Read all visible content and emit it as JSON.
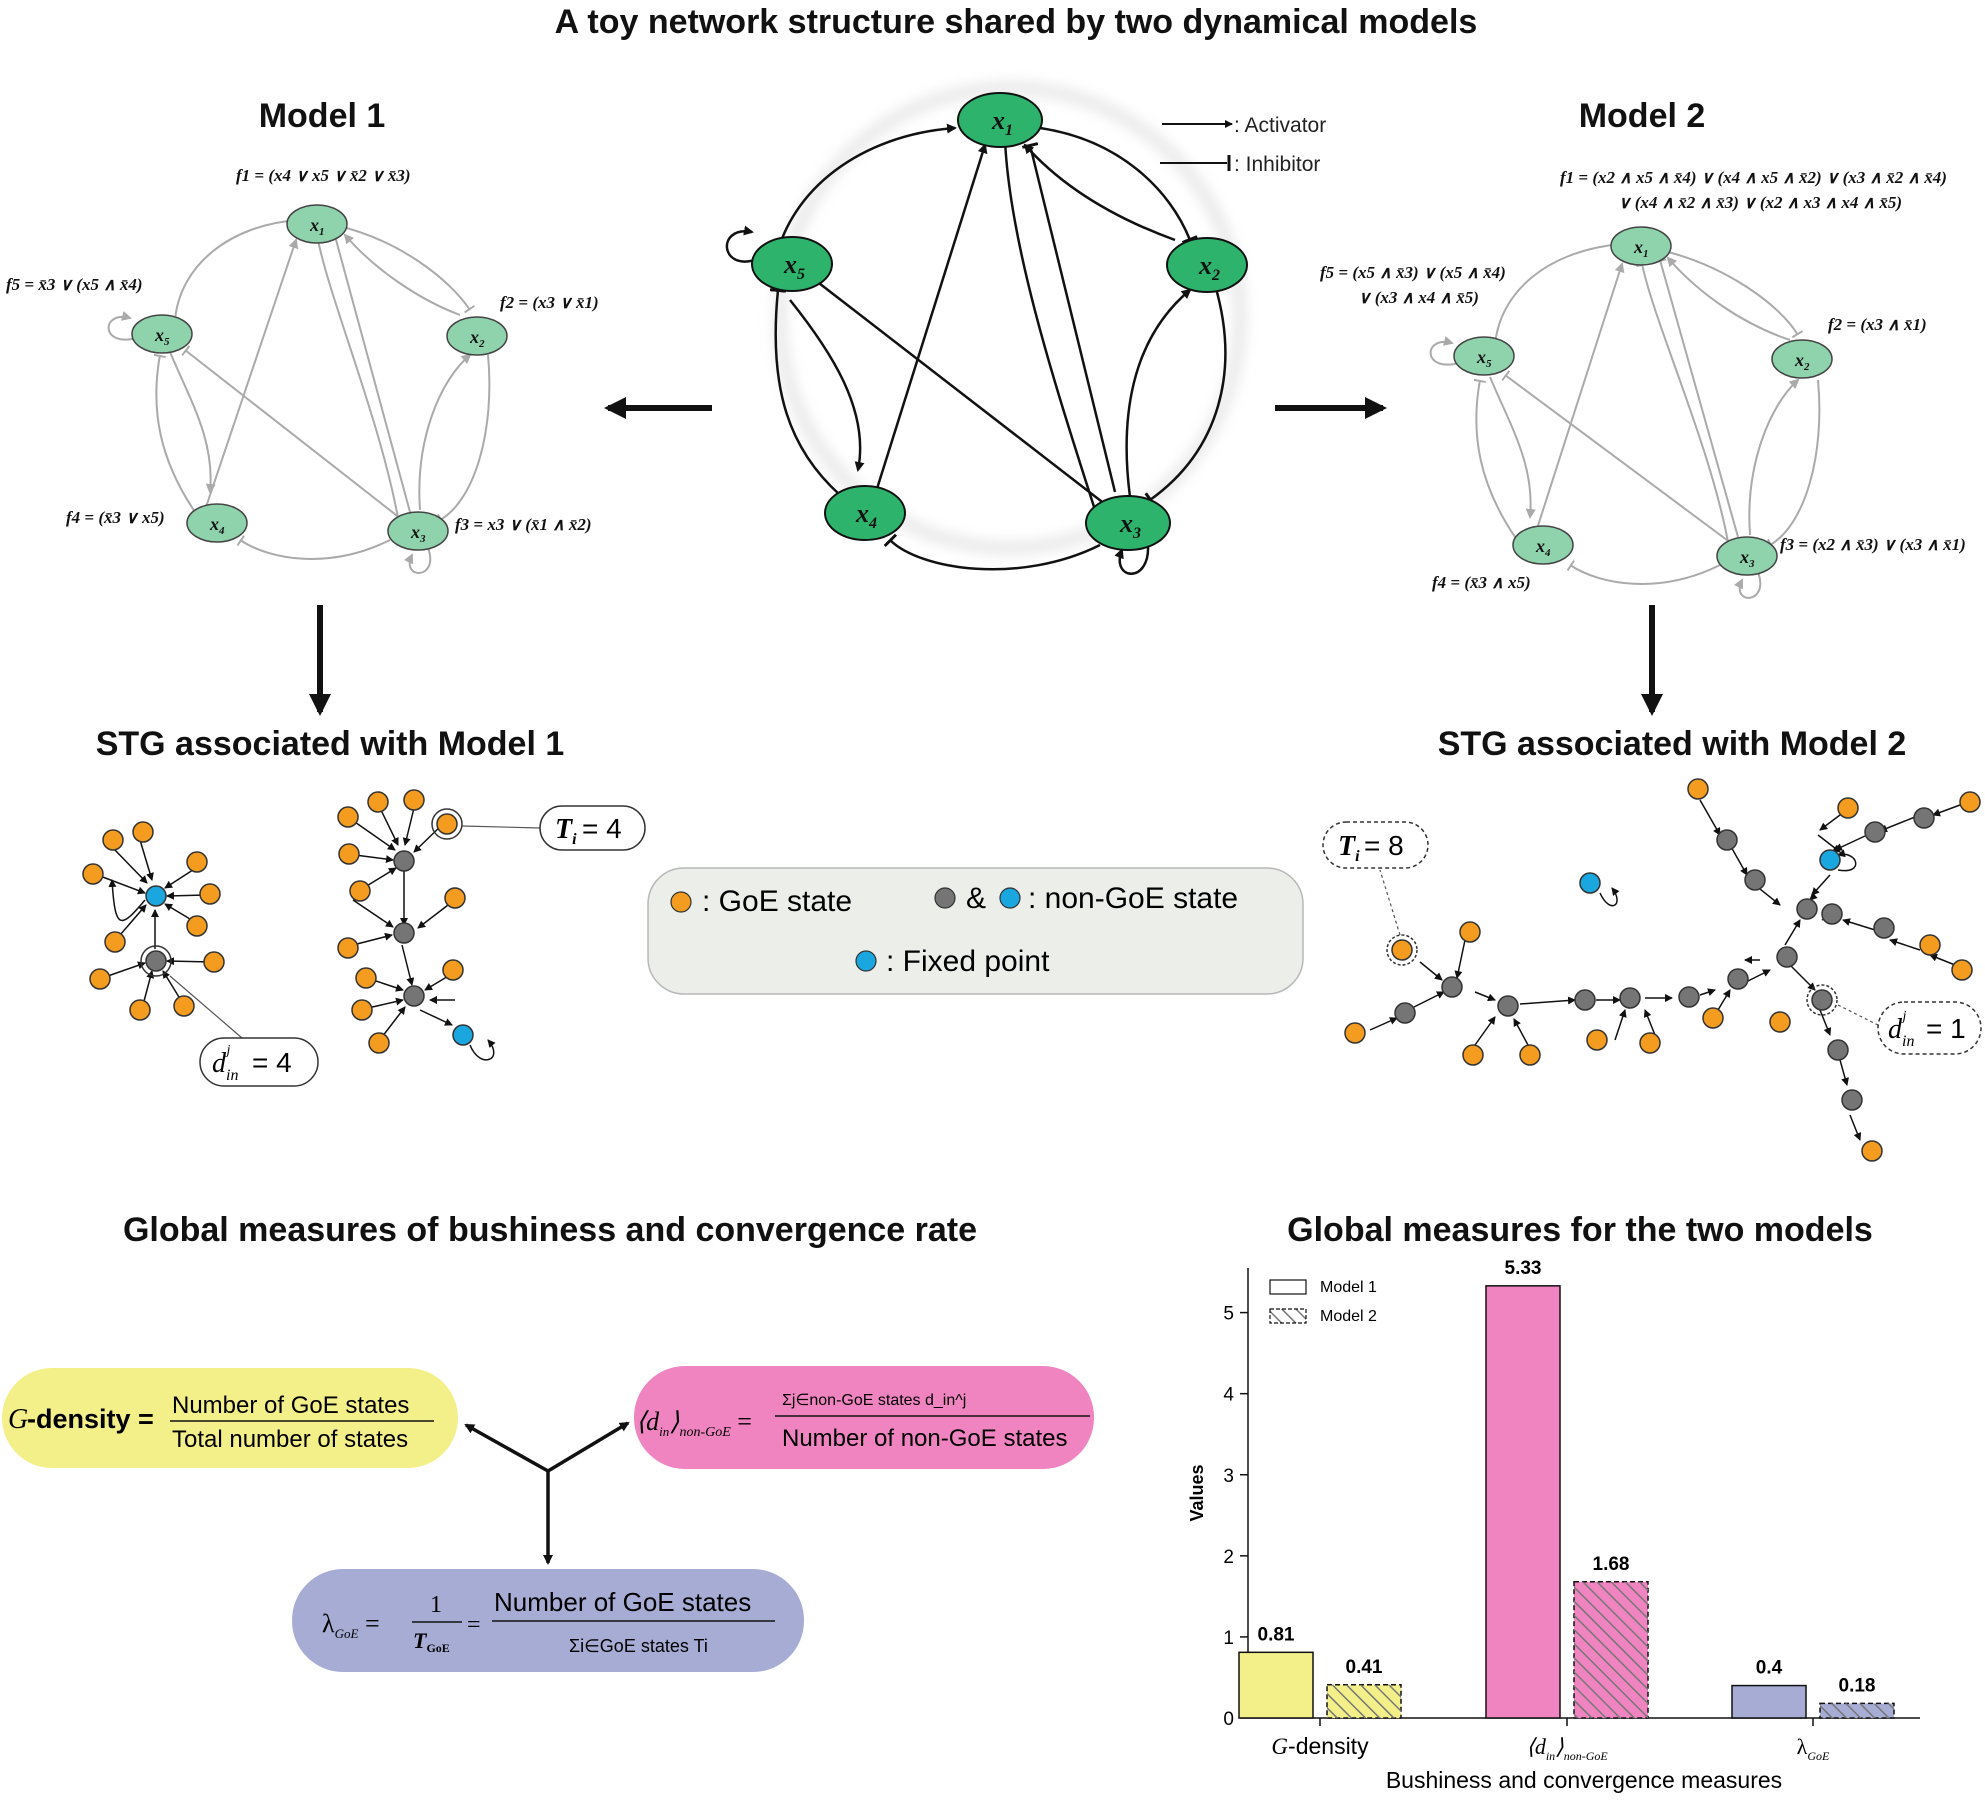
{
  "title": "A toy network structure shared by two dynamical models",
  "legend_arrows": {
    "activator": ": Activator",
    "inhibitor": ": Inhibitor"
  },
  "nodes": {
    "x1": "x",
    "x2": "x",
    "x3": "x",
    "x4": "x",
    "x5": "x",
    "subs": [
      "1",
      "2",
      "3",
      "4",
      "5"
    ]
  },
  "model1": {
    "title": "Model 1",
    "f1": "f1 = (x4 ∨ x5 ∨ x̄2 ∨ x̄3)",
    "f2": "f2 = (x3 ∨ x̄1)",
    "f3": "f3 = x3 ∨ (x̄1 ∧ x̄2)",
    "f4": "f4 = (x̄3 ∨ x5)",
    "f5": "f5 = x̄3 ∨ (x5 ∧ x̄4)"
  },
  "model2": {
    "title": "Model 2",
    "f1_line1": "f1 = (x2 ∧ x5 ∧ x̄4) ∨ (x4 ∧ x5 ∧ x̄2) ∨ (x3 ∧ x̄2 ∧ x̄4)",
    "f1_line2": "∨ (x4 ∧ x̄2 ∧ x̄3) ∨ (x2 ∧ x3 ∧ x4 ∧ x̄5)",
    "f2": "f2 = (x3 ∧ x̄1)",
    "f3": "f3 = (x2 ∧ x̄3) ∨ (x3 ∧ x̄1)",
    "f4": "f4 = (x̄3 ∧ x5)",
    "f5_line1": "f5 = (x5 ∧ x̄3) ∨ (x5 ∧ x̄4)",
    "f5_line2": "∨ (x3 ∧ x4 ∧ x̄5)"
  },
  "stg1": {
    "title": "STG associated with Model 1",
    "ti_label": "= 4",
    "din_label": "= 4"
  },
  "stg2": {
    "title": "STG associated with Model 2",
    "ti_label": "= 8",
    "din_label": "= 1"
  },
  "state_legend": {
    "goe": ": GoE state",
    "nongoe": ": non-GoE state",
    "fixed": ": Fixed point",
    "amp": "&",
    "colors": {
      "goe": "#f39c1f",
      "nongoe": "#757575",
      "fixed": "#1aa7e0"
    }
  },
  "measures": {
    "title": "Global measures of bushiness and convergence rate",
    "gdensity_label": "-density =",
    "gdensity_num": "Number of GoE states",
    "gdensity_den": "Total number of states",
    "din_num": "Σj∈non-GoE states d_in^j",
    "din_den": "Number of non-GoE states",
    "lambda_num": "Number of GoE states",
    "lambda_den": "Σi∈GoE states Ti",
    "colors": {
      "gdensity": "#f3f08a",
      "din": "#ef84c0",
      "lambda": "#a7acd4"
    }
  },
  "chart_data": {
    "type": "bar",
    "title": "Global measures for the two models",
    "xlabel": "Bushiness and convergence measures",
    "ylabel": "Values",
    "categories": [
      "G-density",
      "⟨d_in⟩non-GoE",
      "λGoE"
    ],
    "series": [
      {
        "name": "Model 1",
        "values": [
          0.81,
          5.33,
          0.4
        ]
      },
      {
        "name": "Model 2",
        "values": [
          0.41,
          1.68,
          0.18
        ]
      }
    ],
    "value_labels": [
      [
        "0.81",
        "5.33",
        "0.4"
      ],
      [
        "0.41",
        "1.68",
        "0.18"
      ]
    ],
    "yticks": [
      0,
      1,
      2,
      3,
      4,
      5
    ],
    "ylim": [
      0,
      5.55
    ],
    "legend_position": "top-left",
    "grid": false,
    "colors": [
      "#f3f08a",
      "#ef84c0",
      "#a7acd4"
    ]
  }
}
